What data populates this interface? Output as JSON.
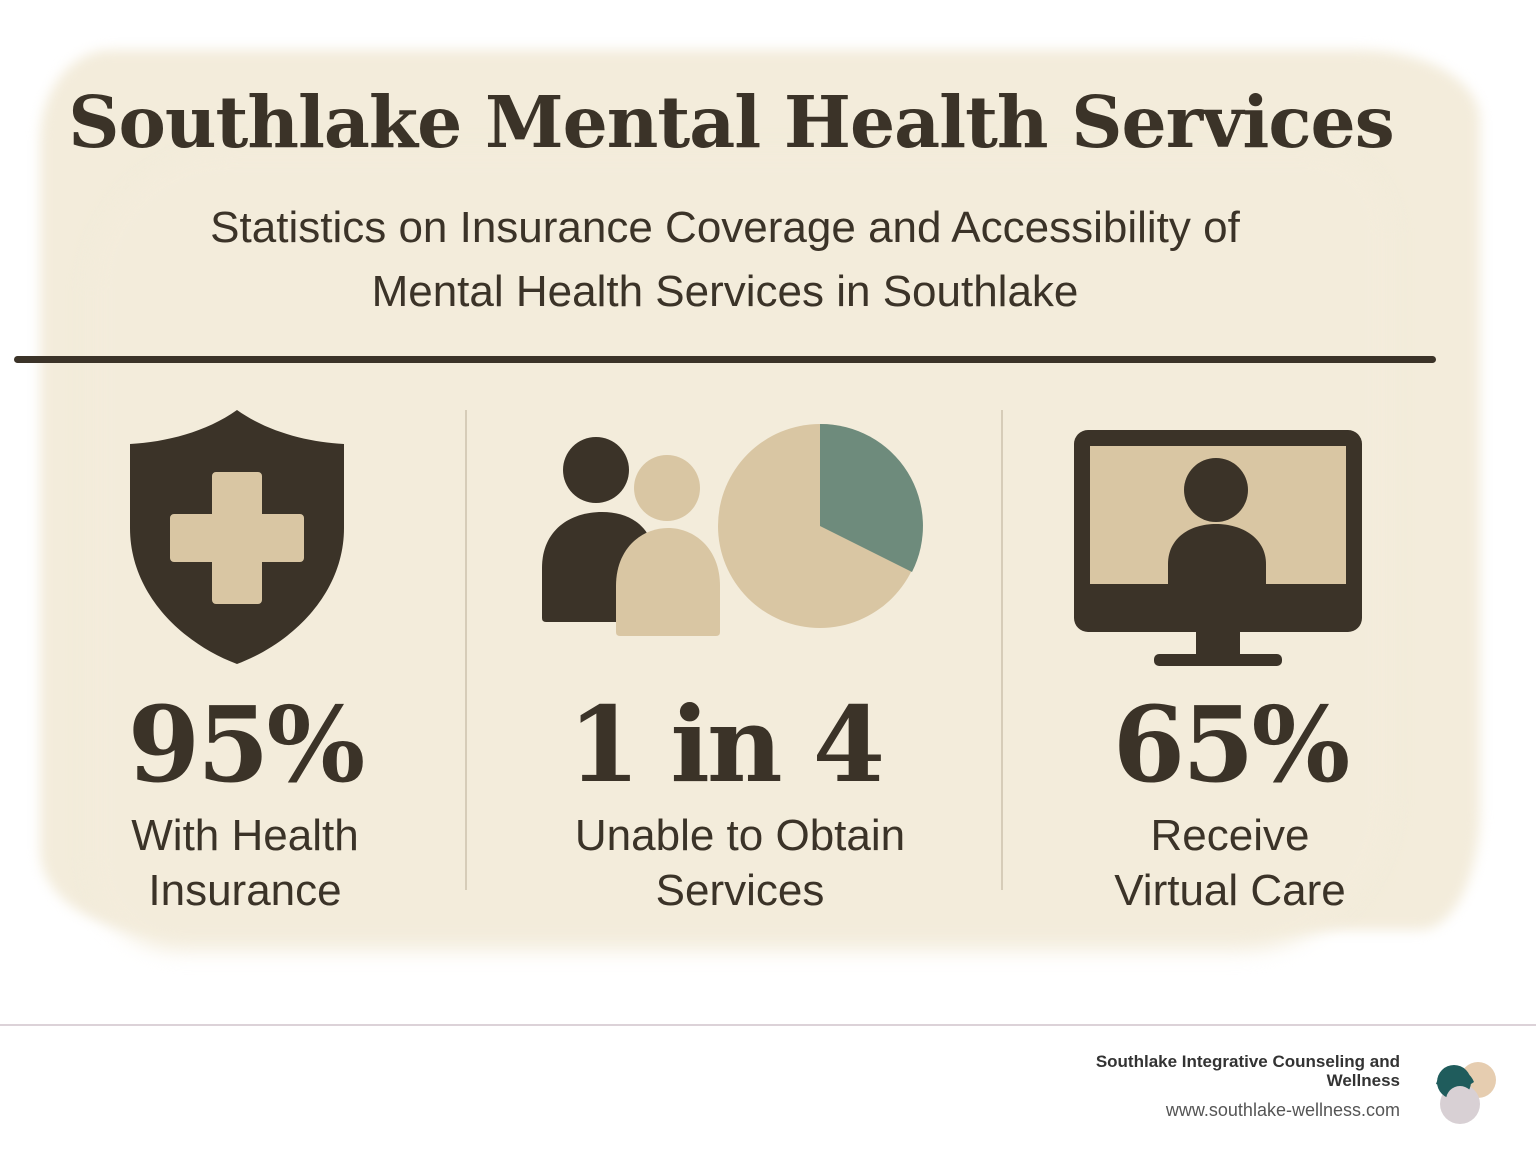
{
  "header": {
    "title": "Southlake Mental Health Services",
    "subtitle_line1": "Statistics on Insurance Coverage and Accessibility of",
    "subtitle_line2": "Mental Health Services in Southlake"
  },
  "stats": [
    {
      "value": "95%",
      "label_line1": "With Health",
      "label_line2": "Insurance",
      "icon": "shield-cross-icon"
    },
    {
      "value": "1 in 4",
      "label_line1": "Unable to Obtain",
      "label_line2": "Services",
      "icon": "people-pie-icon"
    },
    {
      "value": "65%",
      "label_line1": "Receive",
      "label_line2": "Virtual Care",
      "icon": "monitor-person-icon"
    }
  ],
  "footer": {
    "org_name": "Southlake Integrative Counseling and Wellness",
    "url": "www.southlake-wellness.com"
  },
  "colors": {
    "dark": "#3b3328",
    "tan": "#d9c6a3",
    "sage": "#6e8b7c",
    "parchment": "#f3ecdb",
    "logo_teal": "#1f5c5c",
    "logo_peach": "#e6cdb0",
    "logo_gray": "#d8d0d4"
  }
}
